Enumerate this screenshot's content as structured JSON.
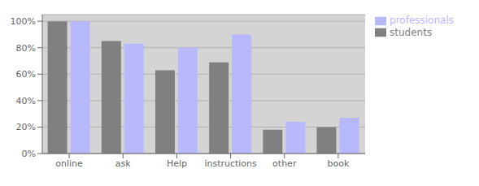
{
  "chart_data": {
    "type": "bar",
    "categories": [
      "online",
      "ask",
      "Help",
      "instructions",
      "other",
      "book"
    ],
    "series": [
      {
        "name": "students",
        "color": "#808080",
        "values": [
          100,
          85,
          63,
          69,
          18,
          20
        ]
      },
      {
        "name": "professionals",
        "color": "#b8b8ff",
        "values": [
          100,
          83,
          80,
          90,
          24,
          27
        ]
      }
    ],
    "ylim": [
      0,
      105
    ],
    "yticks": [
      {
        "value": 0,
        "label": "0%"
      },
      {
        "value": 20,
        "label": "20%"
      },
      {
        "value": 40,
        "label": "40%"
      },
      {
        "value": 60,
        "label": "60%"
      },
      {
        "value": 80,
        "label": "80%"
      },
      {
        "value": 100,
        "label": "100%"
      }
    ],
    "grid": true,
    "legend": "right"
  }
}
